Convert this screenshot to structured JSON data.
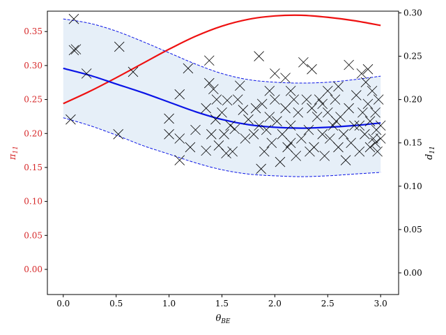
{
  "chart_data": {
    "type": "scatter",
    "title": "",
    "xlabel": "θ",
    "xlabel_sub": "BE",
    "ylabel_left": "π",
    "ylabel_left_sub": "11",
    "ylabel_right": "d",
    "ylabel_right_sub": "11",
    "xlim": [
      -0.15,
      3.17
    ],
    "ylim_left": [
      -0.037,
      0.38
    ],
    "ylim_right": [
      -0.025,
      0.302
    ],
    "x_ticks": [
      0.0,
      0.5,
      1.0,
      1.5,
      2.0,
      2.5,
      3.0
    ],
    "x_tick_labels": [
      "0.0",
      "0.5",
      "1.0",
      "1.5",
      "2.0",
      "2.5",
      "3.0"
    ],
    "y_left_ticks": [
      0.0,
      0.05,
      0.1,
      0.15,
      0.2,
      0.25,
      0.3,
      0.35
    ],
    "y_left_tick_labels": [
      "0.00",
      "0.05",
      "0.10",
      "0.15",
      "0.20",
      "0.25",
      "0.30",
      "0.35"
    ],
    "y_right_ticks": [
      0.0,
      0.05,
      0.1,
      0.15,
      0.2,
      0.25,
      0.3
    ],
    "y_right_tick_labels": [
      "0.00",
      "0.05",
      "0.10",
      "0.15",
      "0.20",
      "0.25",
      "0.30"
    ],
    "grid": false,
    "colors": {
      "left_axis": "#d62728",
      "pi_curve": "#ee1111",
      "d_mean": "#0a14e6",
      "band_fill": "#e6eff8",
      "markers": "#000000"
    },
    "series": [
      {
        "axis": "left",
        "style": "solid",
        "color": "#ee1111",
        "x": [
          0.0,
          0.25,
          0.5,
          0.75,
          1.0,
          1.25,
          1.5,
          1.75,
          2.0,
          2.25,
          2.5,
          2.75,
          3.0
        ],
        "y": [
          0.244,
          0.262,
          0.282,
          0.303,
          0.324,
          0.343,
          0.358,
          0.368,
          0.373,
          0.374,
          0.371,
          0.366,
          0.359
        ]
      },
      {
        "axis": "right",
        "style": "solid",
        "color": "#0a14e6",
        "x": [
          0.0,
          0.25,
          0.5,
          0.75,
          1.0,
          1.25,
          1.5,
          1.75,
          2.0,
          2.25,
          2.5,
          2.75,
          3.0
        ],
        "y": [
          0.236,
          0.228,
          0.218,
          0.208,
          0.197,
          0.186,
          0.177,
          0.171,
          0.168,
          0.167,
          0.168,
          0.17,
          0.173
        ]
      },
      {
        "axis": "right",
        "style": "dashed",
        "color": "#0a14e6",
        "x": [
          0.0,
          0.25,
          0.5,
          0.75,
          1.0,
          1.25,
          1.5,
          1.75,
          2.0,
          2.25,
          2.5,
          2.75,
          3.0
        ],
        "y": [
          0.293,
          0.288,
          0.279,
          0.267,
          0.254,
          0.241,
          0.23,
          0.223,
          0.22,
          0.219,
          0.22,
          0.223,
          0.227
        ]
      },
      {
        "axis": "right",
        "style": "dashed",
        "color": "#0a14e6",
        "x": [
          0.0,
          0.25,
          0.5,
          0.75,
          1.0,
          1.25,
          1.5,
          1.75,
          2.0,
          2.25,
          2.5,
          2.75,
          3.0
        ],
        "y": [
          0.179,
          0.17,
          0.159,
          0.147,
          0.137,
          0.127,
          0.119,
          0.114,
          0.112,
          0.111,
          0.112,
          0.114,
          0.116
        ]
      }
    ],
    "scatter_points_right_axis": [
      [
        0.1,
        0.293
      ],
      [
        0.1,
        0.257
      ],
      [
        0.12,
        0.258
      ],
      [
        0.22,
        0.23
      ],
      [
        0.07,
        0.177
      ],
      [
        0.53,
        0.261
      ],
      [
        0.52,
        0.16
      ],
      [
        0.66,
        0.232
      ],
      [
        1.0,
        0.178
      ],
      [
        1.0,
        0.16
      ],
      [
        1.1,
        0.206
      ],
      [
        1.1,
        0.155
      ],
      [
        1.1,
        0.13
      ],
      [
        1.18,
        0.236
      ],
      [
        1.2,
        0.145
      ],
      [
        1.25,
        0.165
      ],
      [
        1.35,
        0.19
      ],
      [
        1.35,
        0.141
      ],
      [
        1.38,
        0.245
      ],
      [
        1.38,
        0.219
      ],
      [
        1.4,
        0.16
      ],
      [
        1.42,
        0.212
      ],
      [
        1.44,
        0.177
      ],
      [
        1.45,
        0.2
      ],
      [
        1.47,
        0.147
      ],
      [
        1.5,
        0.185
      ],
      [
        1.52,
        0.16
      ],
      [
        1.54,
        0.138
      ],
      [
        1.55,
        0.199
      ],
      [
        1.58,
        0.17
      ],
      [
        1.6,
        0.14
      ],
      [
        1.62,
        0.166
      ],
      [
        1.67,
        0.216
      ],
      [
        1.7,
        0.188
      ],
      [
        1.72,
        0.155
      ],
      [
        1.75,
        0.177
      ],
      [
        1.8,
        0.16
      ],
      [
        1.82,
        0.19
      ],
      [
        1.85,
        0.25
      ],
      [
        1.85,
        0.17
      ],
      [
        1.87,
        0.12
      ],
      [
        1.88,
        0.195
      ],
      [
        1.9,
        0.14
      ],
      [
        1.92,
        0.165
      ],
      [
        1.95,
        0.18
      ],
      [
        1.97,
        0.15
      ],
      [
        2.0,
        0.23
      ],
      [
        2.0,
        0.2
      ],
      [
        2.02,
        0.175
      ],
      [
        2.05,
        0.128
      ],
      [
        2.07,
        0.16
      ],
      [
        2.1,
        0.19
      ],
      [
        2.12,
        0.145
      ],
      [
        2.15,
        0.21
      ],
      [
        2.15,
        0.17
      ],
      [
        2.18,
        0.2
      ],
      [
        2.2,
        0.135
      ],
      [
        2.22,
        0.185
      ],
      [
        2.25,
        0.155
      ],
      [
        2.27,
        0.243
      ],
      [
        2.3,
        0.2
      ],
      [
        2.32,
        0.165
      ],
      [
        2.33,
        0.14
      ],
      [
        2.35,
        0.235
      ],
      [
        2.37,
        0.145
      ],
      [
        2.4,
        0.18
      ],
      [
        2.42,
        0.2
      ],
      [
        2.45,
        0.16
      ],
      [
        2.47,
        0.135
      ],
      [
        2.5,
        0.185
      ],
      [
        2.52,
        0.155
      ],
      [
        2.55,
        0.17
      ],
      [
        2.57,
        0.2
      ],
      [
        2.6,
        0.145
      ],
      [
        2.62,
        0.18
      ],
      [
        2.65,
        0.16
      ],
      [
        2.67,
        0.13
      ],
      [
        2.7,
        0.19
      ],
      [
        2.72,
        0.15
      ],
      [
        2.75,
        0.17
      ],
      [
        2.77,
        0.205
      ],
      [
        2.8,
        0.14
      ],
      [
        2.82,
        0.23
      ],
      [
        2.83,
        0.185
      ],
      [
        2.85,
        0.16
      ],
      [
        2.86,
        0.22
      ],
      [
        2.88,
        0.195
      ],
      [
        2.9,
        0.145
      ],
      [
        2.9,
        0.175
      ],
      [
        2.92,
        0.21
      ],
      [
        2.93,
        0.155
      ],
      [
        2.95,
        0.185
      ],
      [
        2.96,
        0.165
      ],
      [
        2.97,
        0.14
      ],
      [
        2.98,
        0.2
      ],
      [
        3.0,
        0.17
      ],
      [
        3.0,
        0.155
      ],
      [
        2.88,
        0.235
      ],
      [
        2.6,
        0.215
      ],
      [
        2.45,
        0.195
      ],
      [
        2.1,
        0.225
      ],
      [
        1.65,
        0.2
      ],
      [
        2.35,
        0.19
      ],
      [
        2.7,
        0.24
      ],
      [
        2.95,
        0.15
      ],
      [
        2.8,
        0.17
      ],
      [
        2.58,
        0.175
      ],
      [
        2.15,
        0.15
      ],
      [
        1.95,
        0.21
      ],
      [
        2.5,
        0.21
      ]
    ]
  }
}
